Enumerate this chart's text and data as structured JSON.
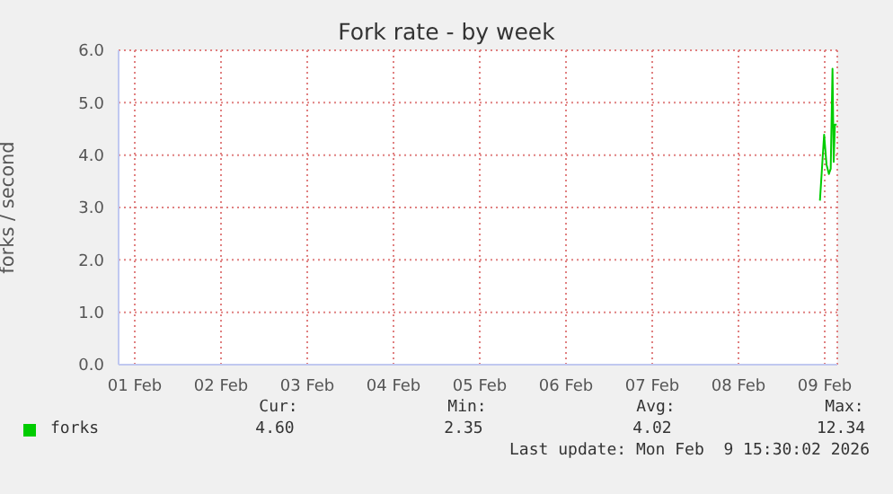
{
  "chart_data": {
    "type": "line",
    "title": "Fork rate - by week",
    "ylabel": "forks / second",
    "xlim": [
      "2026-02-01T07:30",
      "2026-02-09T15:30"
    ],
    "xticks": [
      {
        "value": "2026-02-01T12:00",
        "label": "01 Feb"
      },
      {
        "value": "2026-02-02T12:00",
        "label": "02 Feb"
      },
      {
        "value": "2026-02-03T12:00",
        "label": "03 Feb"
      },
      {
        "value": "2026-02-04T12:00",
        "label": "04 Feb"
      },
      {
        "value": "2026-02-05T12:00",
        "label": "05 Feb"
      },
      {
        "value": "2026-02-06T12:00",
        "label": "06 Feb"
      },
      {
        "value": "2026-02-07T12:00",
        "label": "07 Feb"
      },
      {
        "value": "2026-02-08T12:00",
        "label": "08 Feb"
      },
      {
        "value": "2026-02-09T12:00",
        "label": "09 Feb"
      }
    ],
    "ylim": [
      0,
      6
    ],
    "yticks": [
      {
        "value": 0,
        "label": "0.0"
      },
      {
        "value": 1,
        "label": "1.0"
      },
      {
        "value": 2,
        "label": "2.0"
      },
      {
        "value": 3,
        "label": "3.0"
      },
      {
        "value": 4,
        "label": "4.0"
      },
      {
        "value": 5,
        "label": "5.0"
      },
      {
        "value": 6,
        "label": "6.0"
      }
    ],
    "x": [
      "2026-02-09T10:40",
      "2026-02-09T11:50",
      "2026-02-09T12:30",
      "2026-02-09T13:10",
      "2026-02-09T13:40",
      "2026-02-09T14:10",
      "2026-02-09T14:30",
      "2026-02-09T14:50",
      "2026-02-09T15:20"
    ],
    "series": [
      {
        "name": "forks",
        "color": "#00cc00",
        "values": [
          3.13,
          4.39,
          3.82,
          3.64,
          3.74,
          5.65,
          3.87,
          4.58,
          4.58
        ]
      }
    ],
    "grid": true,
    "legend": "bottom",
    "annotations": [
      "Cur:",
      "Min:",
      "Avg:",
      "Max:",
      "4.60",
      "2.35",
      "4.02",
      "12.34",
      "Last update: Mon Feb  9 15:30:02 2026"
    ]
  }
}
